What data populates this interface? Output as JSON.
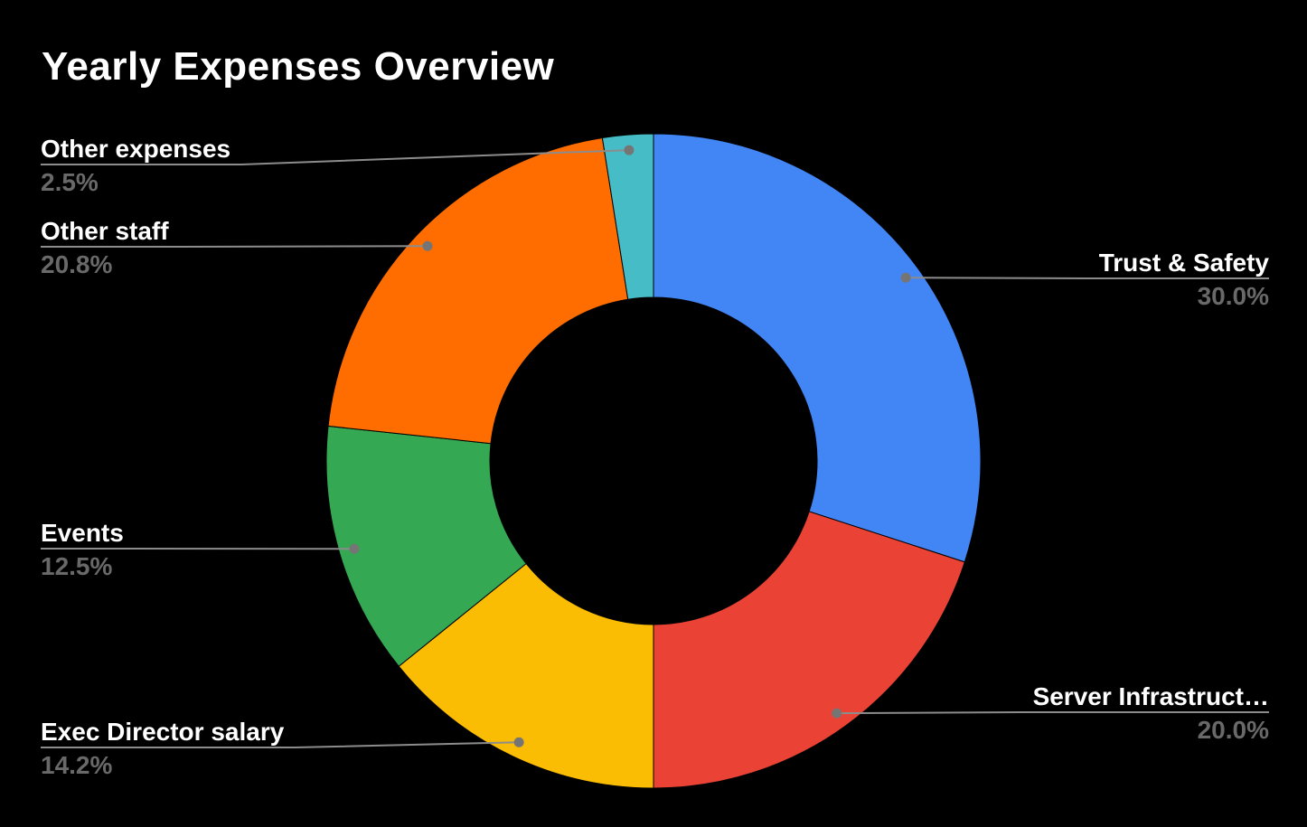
{
  "title": "Yearly Expenses Overview",
  "colors": {
    "background": "#000000",
    "title_text": "#ffffff",
    "label_text": "#ffffff",
    "percent_text": "#696969",
    "leader_line": "#8c8c8c",
    "leader_dot": "#757575"
  },
  "chart_data": {
    "type": "pie",
    "subtype": "donut",
    "title": "Yearly Expenses Overview",
    "unit": "percent",
    "direction": "clockwise",
    "start_angle_deg": 0,
    "donut_hole_ratio": 0.5,
    "legend_position": "labeled-callouts",
    "grid": false,
    "slices": [
      {
        "label": "Trust & Safety",
        "value": 30.0,
        "pct_label": "30.0%",
        "color": "#4285F4"
      },
      {
        "label": "Server Infrastruct…",
        "value": 20.0,
        "pct_label": "20.0%",
        "color": "#EA4335"
      },
      {
        "label": "Exec Director salary",
        "value": 14.2,
        "pct_label": "14.2%",
        "color": "#FBBC04"
      },
      {
        "label": "Events",
        "value": 12.5,
        "pct_label": "12.5%",
        "color": "#34A853"
      },
      {
        "label": "Other staff",
        "value": 20.8,
        "pct_label": "20.8%",
        "color": "#FF6D01"
      },
      {
        "label": "Other expenses",
        "value": 2.5,
        "pct_label": "2.5%",
        "color": "#46BDC6"
      }
    ]
  }
}
